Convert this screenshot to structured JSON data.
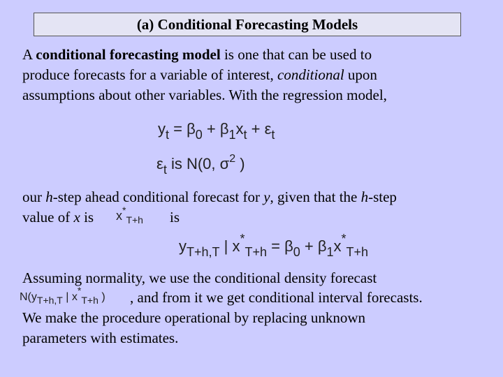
{
  "title": "(a) Conditional Forecasting Models",
  "para1": {
    "line1_pre": "A ",
    "line1_bold": "conditional forecasting model",
    "line1_post": " is one that can be used to",
    "line2_pre": "produce forecasts for a variable of interest, ",
    "line2_ital": "conditional",
    "line2_post": " upon",
    "line3": "assumptions about other variables. With the regression model,"
  },
  "eq1": {
    "y": "y",
    "t": "t",
    "eq": " = β",
    "zero": "0",
    "plus1": " + β",
    "one": "1",
    "x": "x",
    "plus2": " + ε"
  },
  "eq2": {
    "eps": "ε",
    "t": "t",
    "is": " is N(0, σ",
    "two": "2",
    "close": " )"
  },
  "para2": {
    "line1_pre": "our ",
    "line1_h1": "h",
    "line1_mid": "-step ahead conditional forecast for ",
    "line1_y": "y",
    "line1_mid2": ", given that the ",
    "line1_h2": "h",
    "line1_post": "-step",
    "line2_pre": "value of ",
    "line2_x": "x",
    "line2_is1": " is",
    "line2_is2": "is"
  },
  "xstar": {
    "x": "x",
    "star": "*",
    "sub": "T+h"
  },
  "eq3": {
    "y": "y",
    "sub1": "T+h,T",
    "bar": " | x",
    "star": "*",
    "sub2": "T+h",
    "eq": " = β",
    "zero": "0",
    "plus": " + β",
    "one": "1",
    "x": "x",
    "star2": "*",
    "sub3": "T+h"
  },
  "para3": {
    "line1": "Assuming normality, we use the conditional density forecast",
    "line2_post": ", and from it we get conditional interval forecasts.",
    "line3": "We make the procedure operational by replacing unknown",
    "line4": "parameters with estimates."
  },
  "eq4": {
    "n": "N(y",
    "sub1": "T+h,T",
    "bar": " | x",
    "star": "*",
    "sub2": "T+h",
    "close": " )"
  }
}
